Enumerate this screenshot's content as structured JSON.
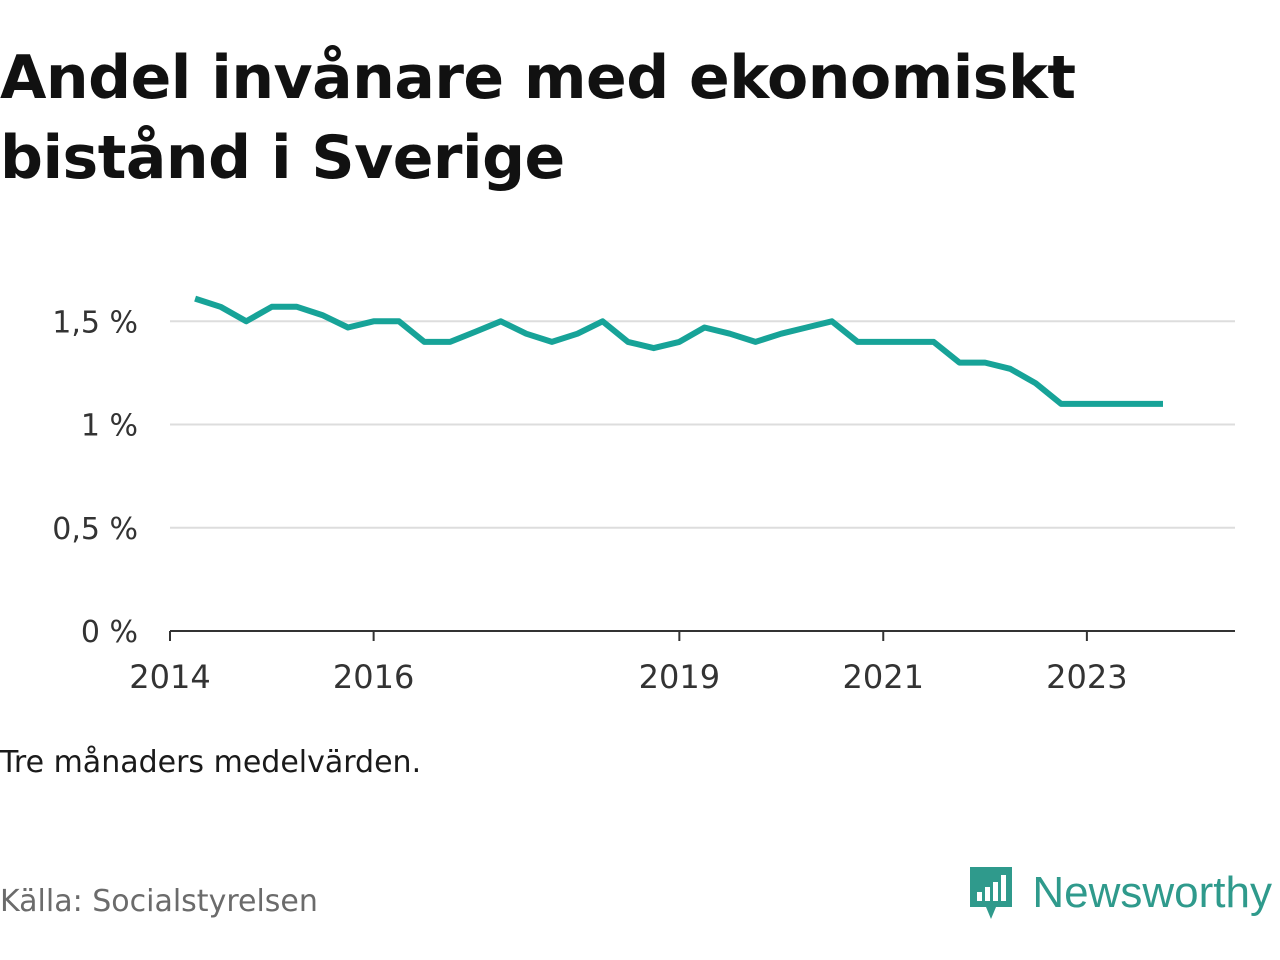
{
  "title": "Andel invånare med ekonomiskt bistånd i Sverige",
  "note": "Tre månaders medelvärden.",
  "source": "Källa: Socialstyrelsen",
  "brand": {
    "name": "Newsworthy",
    "icon": "newsworthy-bar-chart-icon",
    "color": "#2f9a8c"
  },
  "colors": {
    "line": "#17a398",
    "grid": "#dddddd",
    "axis": "#333333"
  },
  "chart_data": {
    "type": "line",
    "title": "Andel invånare med ekonomiskt bistånd i Sverige",
    "xlabel": "",
    "ylabel": "",
    "ylim": [
      0,
      1.7
    ],
    "yticks": [
      {
        "value": 0,
        "label": "0 %"
      },
      {
        "value": 0.5,
        "label": "0,5 %"
      },
      {
        "value": 1,
        "label": "1 %"
      },
      {
        "value": 1.5,
        "label": "1,5 %"
      }
    ],
    "xlim": [
      "2014-01-01",
      "2024-06-15"
    ],
    "xticks": [
      {
        "value": "2014-01-01",
        "label": "2014"
      },
      {
        "value": "2016-01-01",
        "label": "2016"
      },
      {
        "value": "2019-01-01",
        "label": "2019"
      },
      {
        "value": "2021-01-01",
        "label": "2021"
      },
      {
        "value": "2023-01-01",
        "label": "2023"
      }
    ],
    "grid": true,
    "legend": "none",
    "series": [
      {
        "x": [
          "2014-04",
          "2014-07",
          "2014-10",
          "2015-01",
          "2015-04",
          "2015-07",
          "2015-10",
          "2016-01",
          "2016-04",
          "2016-07",
          "2016-10",
          "2017-01",
          "2017-04",
          "2017-07",
          "2017-10",
          "2018-01",
          "2018-04",
          "2018-07",
          "2018-10",
          "2019-01",
          "2019-04",
          "2019-07",
          "2019-10",
          "2020-01",
          "2020-04",
          "2020-07",
          "2020-10",
          "2021-01",
          "2021-04",
          "2021-07",
          "2021-10",
          "2022-01",
          "2022-04",
          "2022-07",
          "2022-10",
          "2023-01",
          "2023-04",
          "2023-07",
          "2023-10"
        ],
        "values": [
          1.61,
          1.57,
          1.5,
          1.57,
          1.57,
          1.53,
          1.47,
          1.5,
          1.5,
          1.4,
          1.4,
          1.45,
          1.5,
          1.44,
          1.4,
          1.44,
          1.5,
          1.4,
          1.37,
          1.4,
          1.47,
          1.44,
          1.4,
          1.44,
          1.47,
          1.5,
          1.4,
          1.4,
          1.4,
          1.4,
          1.3,
          1.3,
          1.27,
          1.2,
          1.1,
          1.1,
          1.1,
          1.1,
          1.1
        ]
      }
    ]
  }
}
